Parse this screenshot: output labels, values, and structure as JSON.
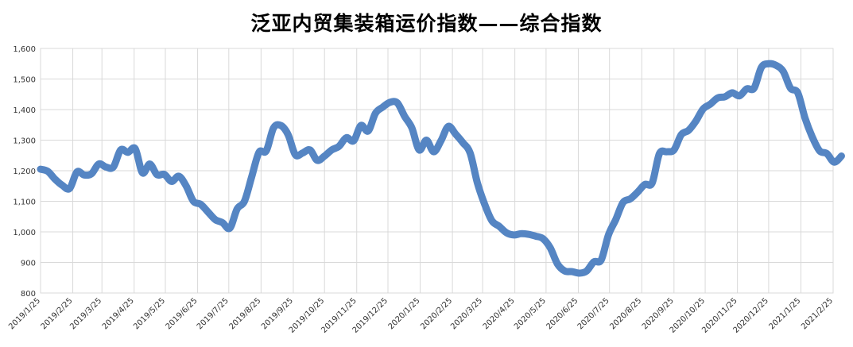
{
  "chart_data": {
    "type": "line",
    "title": "泛亚内贸集装箱运价指数——综合指数",
    "xlabel": "",
    "ylabel": "",
    "ylim": [
      800,
      1600
    ],
    "yticks": [
      800,
      900,
      1000,
      1100,
      1200,
      1300,
      1400,
      1500,
      1600
    ],
    "ytick_labels": [
      "800",
      "900",
      "1,000",
      "1,100",
      "1,200",
      "1,300",
      "1,400",
      "1,500",
      "1,600"
    ],
    "xticks": [
      "2019/1/25",
      "2019/2/25",
      "2019/3/25",
      "2019/4/25",
      "2019/5/25",
      "2019/6/25",
      "2019/7/25",
      "2019/8/25",
      "2019/9/25",
      "2019/10/25",
      "2019/11/25",
      "2019/12/25",
      "2020/1/25",
      "2020/2/25",
      "2020/3/25",
      "2020/4/25",
      "2020/5/25",
      "2020/6/25",
      "2020/7/25",
      "2020/8/25",
      "2020/9/25",
      "2020/10/25",
      "2020/11/25",
      "2020/12/25",
      "2021/1/25",
      "2021/2/25"
    ],
    "grid": true,
    "line_color": "#5585c3",
    "points": [
      [
        "2019/1/25",
        1205
      ],
      [
        "2019/2/1",
        1198
      ],
      [
        "2019/2/8",
        1172
      ],
      [
        "2019/2/15",
        1152
      ],
      [
        "2019/2/22",
        1142
      ],
      [
        "2019/3/1",
        1196
      ],
      [
        "2019/3/8",
        1186
      ],
      [
        "2019/3/15",
        1190
      ],
      [
        "2019/3/22",
        1222
      ],
      [
        "2019/3/29",
        1212
      ],
      [
        "2019/4/5",
        1212
      ],
      [
        "2019/4/12",
        1268
      ],
      [
        "2019/4/19",
        1260
      ],
      [
        "2019/4/26",
        1272
      ],
      [
        "2019/5/3",
        1193
      ],
      [
        "2019/5/10",
        1222
      ],
      [
        "2019/5/17",
        1187
      ],
      [
        "2019/5/24",
        1188
      ],
      [
        "2019/5/31",
        1165
      ],
      [
        "2019/6/7",
        1182
      ],
      [
        "2019/6/14",
        1150
      ],
      [
        "2019/6/21",
        1100
      ],
      [
        "2019/6/28",
        1090
      ],
      [
        "2019/7/5",
        1065
      ],
      [
        "2019/7/12",
        1040
      ],
      [
        "2019/7/19",
        1030
      ],
      [
        "2019/7/26",
        1012
      ],
      [
        "2019/8/2",
        1075
      ],
      [
        "2019/8/9",
        1100
      ],
      [
        "2019/8/16",
        1180
      ],
      [
        "2019/8/23",
        1260
      ],
      [
        "2019/8/30",
        1265
      ],
      [
        "2019/9/6",
        1340
      ],
      [
        "2019/9/13",
        1348
      ],
      [
        "2019/9/20",
        1318
      ],
      [
        "2019/9/27",
        1252
      ],
      [
        "2019/10/4",
        1258
      ],
      [
        "2019/10/11",
        1268
      ],
      [
        "2019/10/18",
        1234
      ],
      [
        "2019/10/25",
        1248
      ],
      [
        "2019/11/1",
        1268
      ],
      [
        "2019/11/8",
        1280
      ],
      [
        "2019/11/15",
        1308
      ],
      [
        "2019/11/22",
        1298
      ],
      [
        "2019/11/29",
        1348
      ],
      [
        "2019/12/6",
        1330
      ],
      [
        "2019/12/13",
        1388
      ],
      [
        "2019/12/20",
        1408
      ],
      [
        "2019/12/27",
        1424
      ],
      [
        "2020/1/3",
        1422
      ],
      [
        "2020/1/10",
        1378
      ],
      [
        "2020/1/17",
        1340
      ],
      [
        "2020/1/24",
        1268
      ],
      [
        "2020/1/31",
        1300
      ],
      [
        "2020/2/7",
        1262
      ],
      [
        "2020/2/14",
        1298
      ],
      [
        "2020/2/21",
        1345
      ],
      [
        "2020/2/28",
        1320
      ],
      [
        "2020/3/6",
        1292
      ],
      [
        "2020/3/13",
        1258
      ],
      [
        "2020/3/20",
        1160
      ],
      [
        "2020/3/27",
        1090
      ],
      [
        "2020/4/3",
        1036
      ],
      [
        "2020/4/10",
        1018
      ],
      [
        "2020/4/17",
        997
      ],
      [
        "2020/4/24",
        990
      ],
      [
        "2020/5/1",
        994
      ],
      [
        "2020/5/8",
        992
      ],
      [
        "2020/5/15",
        986
      ],
      [
        "2020/5/22",
        978
      ],
      [
        "2020/5/29",
        948
      ],
      [
        "2020/6/5",
        895
      ],
      [
        "2020/6/12",
        872
      ],
      [
        "2020/6/19",
        870
      ],
      [
        "2020/6/26",
        865
      ],
      [
        "2020/7/3",
        872
      ],
      [
        "2020/7/10",
        902
      ],
      [
        "2020/7/17",
        908
      ],
      [
        "2020/7/24",
        990
      ],
      [
        "2020/7/31",
        1040
      ],
      [
        "2020/8/7",
        1096
      ],
      [
        "2020/8/14",
        1108
      ],
      [
        "2020/8/21",
        1130
      ],
      [
        "2020/8/28",
        1155
      ],
      [
        "2020/9/4",
        1160
      ],
      [
        "2020/9/11",
        1256
      ],
      [
        "2020/9/18",
        1262
      ],
      [
        "2020/9/25",
        1268
      ],
      [
        "2020/10/2",
        1318
      ],
      [
        "2020/10/9",
        1332
      ],
      [
        "2020/10/16",
        1362
      ],
      [
        "2020/10/23",
        1402
      ],
      [
        "2020/10/30",
        1418
      ],
      [
        "2020/11/6",
        1438
      ],
      [
        "2020/11/13",
        1442
      ],
      [
        "2020/11/20",
        1455
      ],
      [
        "2020/11/27",
        1445
      ],
      [
        "2020/12/4",
        1468
      ],
      [
        "2020/12/11",
        1470
      ],
      [
        "2020/12/18",
        1538
      ],
      [
        "2020/12/25",
        1550
      ],
      [
        "2021/1/1",
        1545
      ],
      [
        "2021/1/8",
        1525
      ],
      [
        "2021/1/15",
        1470
      ],
      [
        "2021/1/22",
        1455
      ],
      [
        "2021/1/29",
        1372
      ],
      [
        "2021/2/5",
        1310
      ],
      [
        "2021/2/12",
        1265
      ],
      [
        "2021/2/19",
        1256
      ],
      [
        "2021/2/26",
        1228
      ],
      [
        "2021/3/5",
        1248
      ]
    ]
  }
}
